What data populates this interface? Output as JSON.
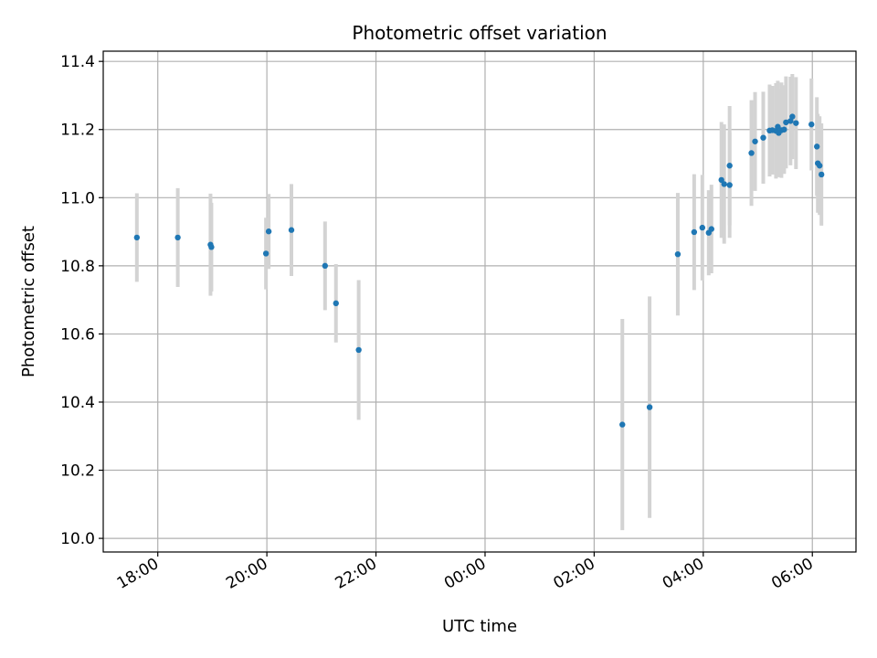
{
  "chart_data": {
    "type": "scatter",
    "title": "Photometric offset variation",
    "xlabel": "UTC time",
    "ylabel": "Photometric offset",
    "x_ticks": [
      "18:00",
      "20:00",
      "22:00",
      "00:00",
      "02:00",
      "04:00",
      "06:00"
    ],
    "y_ticks": [
      "10.0",
      "10.2",
      "10.4",
      "10.6",
      "10.8",
      "11.0",
      "11.2",
      "11.4"
    ],
    "xlim": [
      "17:00",
      "06:48"
    ],
    "ylim": [
      9.96,
      11.43
    ],
    "grid": true,
    "errorbar_color": "#d3d3d3",
    "marker_color": "#1f77b4",
    "points": [
      {
        "x": "17:37",
        "y": 10.883,
        "err": 0.13
      },
      {
        "x": "18:22",
        "y": 10.883,
        "err": 0.145
      },
      {
        "x": "18:58",
        "y": 10.862,
        "err": 0.15
      },
      {
        "x": "18:59",
        "y": 10.855,
        "err": 0.13
      },
      {
        "x": "19:59",
        "y": 10.836,
        "err": 0.105
      },
      {
        "x": "20:02",
        "y": 10.901,
        "err": 0.11
      },
      {
        "x": "20:27",
        "y": 10.905,
        "err": 0.135
      },
      {
        "x": "21:04",
        "y": 10.8,
        "err": 0.13
      },
      {
        "x": "21:16",
        "y": 10.69,
        "err": 0.115
      },
      {
        "x": "21:41",
        "y": 10.553,
        "err": 0.205
      },
      {
        "x": "02:31",
        "y": 10.334,
        "err": 0.31
      },
      {
        "x": "03:01",
        "y": 10.385,
        "err": 0.325
      },
      {
        "x": "03:32",
        "y": 10.834,
        "err": 0.18
      },
      {
        "x": "03:50",
        "y": 10.899,
        "err": 0.17
      },
      {
        "x": "03:59",
        "y": 10.912,
        "err": 0.155
      },
      {
        "x": "04:06",
        "y": 10.897,
        "err": 0.125
      },
      {
        "x": "04:09",
        "y": 10.908,
        "err": 0.13
      },
      {
        "x": "04:20",
        "y": 11.052,
        "err": 0.17
      },
      {
        "x": "04:23",
        "y": 11.04,
        "err": 0.175
      },
      {
        "x": "04:29",
        "y": 11.037,
        "err": 0.155
      },
      {
        "x": "04:29",
        "y": 11.094,
        "err": 0.175
      },
      {
        "x": "04:53",
        "y": 11.131,
        "err": 0.155
      },
      {
        "x": "04:57",
        "y": 11.165,
        "err": 0.145
      },
      {
        "x": "05:06",
        "y": 11.176,
        "err": 0.135
      },
      {
        "x": "05:13",
        "y": 11.197,
        "err": 0.135
      },
      {
        "x": "05:16",
        "y": 11.198,
        "err": 0.13
      },
      {
        "x": "05:20",
        "y": 11.196,
        "err": 0.14
      },
      {
        "x": "05:22",
        "y": 11.208,
        "err": 0.135
      },
      {
        "x": "05:23",
        "y": 11.19,
        "err": 0.13
      },
      {
        "x": "05:26",
        "y": 11.198,
        "err": 0.14
      },
      {
        "x": "05:29",
        "y": 11.2,
        "err": 0.13
      },
      {
        "x": "05:31",
        "y": 11.221,
        "err": 0.135
      },
      {
        "x": "05:36",
        "y": 11.225,
        "err": 0.13
      },
      {
        "x": "05:38",
        "y": 11.238,
        "err": 0.125
      },
      {
        "x": "05:42",
        "y": 11.219,
        "err": 0.135
      },
      {
        "x": "05:59",
        "y": 11.215,
        "err": 0.135
      },
      {
        "x": "06:05",
        "y": 11.15,
        "err": 0.145
      },
      {
        "x": "06:06",
        "y": 11.101,
        "err": 0.145
      },
      {
        "x": "06:08",
        "y": 11.094,
        "err": 0.145
      },
      {
        "x": "06:10",
        "y": 11.068,
        "err": 0.15
      }
    ]
  }
}
